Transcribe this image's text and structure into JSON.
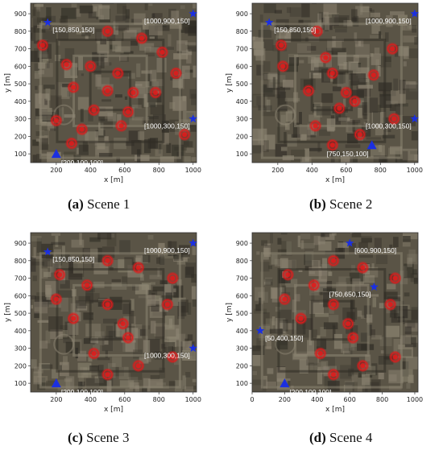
{
  "figure": {
    "panels": [
      {
        "id": "a",
        "caption_letter": "(a)",
        "caption_text": "Scene 1",
        "chart_data": {
          "type": "scatter",
          "xlabel": "x [m]",
          "ylabel": "y [m]",
          "xlim": [
            50,
            1020
          ],
          "ylim": [
            50,
            960
          ],
          "xticks": [
            200,
            400,
            600,
            800,
            1000
          ],
          "yticks": [
            100,
            200,
            300,
            400,
            500,
            600,
            700,
            800,
            900
          ],
          "background": "aerial-photo",
          "annotations": [
            {
              "text": "[150,850,150]",
              "x": 150,
              "y": 850,
              "marker": "star"
            },
            {
              "text": "[1000,900,150]",
              "x": 1000,
              "y": 900,
              "marker": "star"
            },
            {
              "text": "[1000,300,150]",
              "x": 1000,
              "y": 300,
              "marker": "star"
            },
            {
              "text": "[200,100,100]",
              "x": 200,
              "y": 100,
              "marker": "triangle"
            }
          ],
          "targets": [
            [
              120,
              720
            ],
            [
              500,
              800
            ],
            [
              700,
              760
            ],
            [
              820,
              680
            ],
            [
              260,
              610
            ],
            [
              400,
              600
            ],
            [
              560,
              560
            ],
            [
              900,
              560
            ],
            [
              300,
              480
            ],
            [
              500,
              460
            ],
            [
              650,
              450
            ],
            [
              780,
              450
            ],
            [
              420,
              350
            ],
            [
              620,
              340
            ],
            [
              200,
              290
            ],
            [
              580,
              260
            ],
            [
              350,
              240
            ],
            [
              290,
              160
            ],
            [
              950,
              210
            ]
          ]
        }
      },
      {
        "id": "b",
        "caption_letter": "(b)",
        "caption_text": "Scene 2",
        "chart_data": {
          "type": "scatter",
          "xlabel": "x [m]",
          "ylabel": "y [m]",
          "xlim": [
            50,
            1020
          ],
          "ylim": [
            50,
            960
          ],
          "xticks": [
            200,
            400,
            600,
            800,
            1000
          ],
          "yticks": [
            100,
            200,
            300,
            400,
            500,
            600,
            700,
            800,
            900
          ],
          "background": "aerial-photo",
          "annotations": [
            {
              "text": "[150,850,150]",
              "x": 150,
              "y": 850,
              "marker": "star"
            },
            {
              "text": "[1000,900,150]",
              "x": 1000,
              "y": 900,
              "marker": "star"
            },
            {
              "text": "[1000,300,150]",
              "x": 1000,
              "y": 300,
              "marker": "star"
            },
            {
              "text": "[750,150,100]",
              "x": 750,
              "y": 150,
              "marker": "triangle"
            }
          ],
          "targets": [
            [
              430,
              800
            ],
            [
              870,
              700
            ],
            [
              220,
              720
            ],
            [
              480,
              650
            ],
            [
              230,
              600
            ],
            [
              520,
              560
            ],
            [
              760,
              550
            ],
            [
              380,
              460
            ],
            [
              600,
              450
            ],
            [
              650,
              400
            ],
            [
              560,
              360
            ],
            [
              880,
              300
            ],
            [
              420,
              260
            ],
            [
              680,
              210
            ],
            [
              520,
              150
            ]
          ]
        }
      },
      {
        "id": "c",
        "caption_letter": "(c)",
        "caption_text": "Scene 3",
        "chart_data": {
          "type": "scatter",
          "xlabel": "x [m]",
          "ylabel": "y [m]",
          "xlim": [
            50,
            1020
          ],
          "ylim": [
            50,
            960
          ],
          "xticks": [
            200,
            400,
            600,
            800,
            1000
          ],
          "yticks": [
            100,
            200,
            300,
            400,
            500,
            600,
            700,
            800,
            900
          ],
          "background": "aerial-photo",
          "annotations": [
            {
              "text": "[150,850,150]",
              "x": 150,
              "y": 850,
              "marker": "star"
            },
            {
              "text": "[1000,900,150]",
              "x": 1000,
              "y": 900,
              "marker": "star"
            },
            {
              "text": "[1000,300,150]",
              "x": 1000,
              "y": 300,
              "marker": "star"
            },
            {
              "text": "[200,100,100]",
              "x": 200,
              "y": 100,
              "marker": "triangle"
            }
          ],
          "targets": [
            [
              500,
              800
            ],
            [
              880,
              700
            ],
            [
              220,
              720
            ],
            [
              380,
              660
            ],
            [
              680,
              760
            ],
            [
              200,
              580
            ],
            [
              500,
              550
            ],
            [
              850,
              550
            ],
            [
              300,
              470
            ],
            [
              590,
              440
            ],
            [
              620,
              360
            ],
            [
              420,
              270
            ],
            [
              680,
              200
            ],
            [
              500,
              150
            ],
            [
              880,
              250
            ]
          ]
        }
      },
      {
        "id": "d",
        "caption_letter": "(d)",
        "caption_text": "Scene 4",
        "chart_data": {
          "type": "scatter",
          "xlabel": "x [m]",
          "ylabel": "y [m]",
          "xlim": [
            0,
            1020
          ],
          "ylim": [
            50,
            960
          ],
          "xticks": [
            0,
            200,
            400,
            600,
            800,
            1000
          ],
          "yticks": [
            100,
            200,
            300,
            400,
            500,
            600,
            700,
            800,
            900
          ],
          "background": "aerial-photo",
          "annotations": [
            {
              "text": "[600,900,150]",
              "x": 600,
              "y": 900,
              "marker": "star"
            },
            {
              "text": "[750,650,150]",
              "x": 750,
              "y": 650,
              "marker": "star"
            },
            {
              "text": "[50,400,150]",
              "x": 50,
              "y": 400,
              "marker": "star"
            },
            {
              "text": "[200,100,100]",
              "x": 200,
              "y": 100,
              "marker": "triangle"
            }
          ],
          "targets": [
            [
              500,
              800
            ],
            [
              880,
              700
            ],
            [
              220,
              720
            ],
            [
              380,
              660
            ],
            [
              680,
              760
            ],
            [
              200,
              580
            ],
            [
              500,
              550
            ],
            [
              850,
              550
            ],
            [
              300,
              470
            ],
            [
              590,
              440
            ],
            [
              620,
              360
            ],
            [
              420,
              270
            ],
            [
              680,
              200
            ],
            [
              500,
              150
            ],
            [
              880,
              250
            ]
          ]
        }
      }
    ]
  },
  "colors": {
    "photo_base": "#5a5446",
    "photo_light": "#8d8573",
    "photo_dark": "#2f2c25",
    "target_red": "#e01b1b",
    "uav_blue": "#1b2fe0",
    "annotation_text": "#ffffff"
  }
}
